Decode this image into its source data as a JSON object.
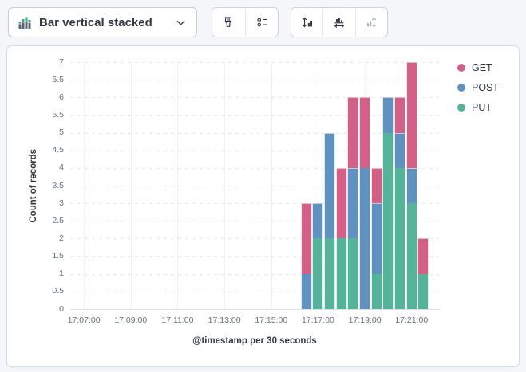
{
  "toolbar": {
    "chart_type": {
      "label": "Bar vertical stacked",
      "icon": "bar-vertical-stacked-icon",
      "chevron_icon": "chevron-down-icon"
    },
    "style_group": [
      {
        "icon": "brush-icon",
        "disabled": false
      },
      {
        "icon": "legend-settings-icon",
        "disabled": false
      }
    ],
    "axis_group": [
      {
        "icon": "fit-y-axis-icon",
        "disabled": false
      },
      {
        "icon": "fit-x-axis-icon",
        "disabled": false
      },
      {
        "icon": "axis-extent-icon",
        "disabled": true
      }
    ]
  },
  "chart_data": {
    "type": "bar",
    "stacked": true,
    "title": "",
    "xlabel": "@timestamp per 30 seconds",
    "ylabel": "Count of records",
    "ylim": [
      0,
      7
    ],
    "y_tick_step": 0.5,
    "y_ticks": [
      "0",
      "0.5",
      "1",
      "1.5",
      "2",
      "2.5",
      "3",
      "3.5",
      "4",
      "4.5",
      "5",
      "5.5",
      "6",
      "6.5",
      "7"
    ],
    "x_ticks": [
      "17:07:00",
      "17:09:00",
      "17:11:00",
      "17:13:00",
      "17:15:00",
      "17:17:00",
      "17:19:00",
      "17:21:00"
    ],
    "x_domain": [
      "17:06:25",
      "17:22:10"
    ],
    "bar_interval_seconds": 30,
    "grid": true,
    "legend_position": "right",
    "x": [
      "17:16:30",
      "17:17:00",
      "17:17:30",
      "17:18:00",
      "17:18:30",
      "17:19:00",
      "17:19:30",
      "17:20:00",
      "17:20:30",
      "17:21:00",
      "17:21:30"
    ],
    "stack_order_bottom_to_top": [
      "PUT",
      "POST",
      "GET"
    ],
    "series": [
      {
        "name": "GET",
        "color": "#d36086",
        "values": [
          2,
          0,
          0,
          2,
          2,
          2,
          1,
          0,
          1,
          3,
          1
        ]
      },
      {
        "name": "POST",
        "color": "#6092c0",
        "values": [
          1,
          1,
          3,
          0,
          2,
          4,
          2,
          1,
          1,
          1,
          0
        ]
      },
      {
        "name": "PUT",
        "color": "#54b399",
        "values": [
          0,
          2,
          2,
          2,
          2,
          0,
          1,
          5,
          4,
          3,
          1
        ]
      }
    ]
  }
}
